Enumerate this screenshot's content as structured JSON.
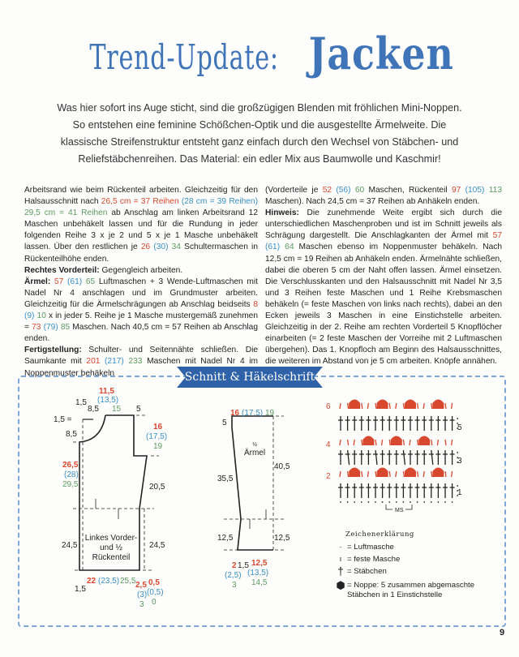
{
  "colors": {
    "accent": "#3f74b8",
    "size_s": "#d8482e",
    "size_m": "#3a8fc8",
    "size_l": "#5d9a62",
    "banner": "#2f62a8"
  },
  "title": {
    "part1": "Trend-Update:",
    "part2": "Jacken"
  },
  "intro": "Was hier sofort ins Auge sticht, sind die großzügigen Blenden mit fröhlichen Mini-Noppen. So entstehen eine feminine Schößchen-Optik und die ausgestellte Ärmelweite. Die klassische Streifenstruktur entsteht ganz einfach durch den Wechsel von Stäbchen- und Reliefstäbchenreihen. Das Material: ein edler Mix aus Baumwolle und Kaschmir!",
  "column1": [
    [
      {
        "t": "Arbeitsrand wie beim Rückenteil arbeiten. Gleichzeitig für den Halsausschnitt nach "
      },
      {
        "t": "26,5 cm = 37 Reihen",
        "c": "r"
      },
      {
        "t": " (28 cm = 39 Reihen) ",
        "c": "b"
      },
      {
        "t": "29,5 cm = 41 Reihen",
        "c": "g"
      },
      {
        "t": " ab Anschlag am linken Arbeitsrand 12 Maschen unbehäkelt lassen und für die Rundung in jeder folgenden Reihe 3 x je 2 und 5 x je 1 Masche unbehäkelt lassen. Über den restlichen je "
      },
      {
        "t": "26",
        "c": "r"
      },
      {
        "t": " (30) ",
        "c": "b"
      },
      {
        "t": "34",
        "c": "g"
      },
      {
        "t": " Schultermaschen in Rückenteilhöhe enden."
      }
    ],
    [
      {
        "t": "Rechtes Vorderteil:",
        "c": "bold"
      },
      {
        "t": " Gegengleich arbeiten."
      }
    ],
    [
      {
        "t": "Ärmel:",
        "c": "bold"
      },
      {
        "t": " "
      },
      {
        "t": "57",
        "c": "r"
      },
      {
        "t": " (61) ",
        "c": "b"
      },
      {
        "t": "65",
        "c": "g"
      },
      {
        "t": " Luftmaschen + 3 Wende-Luftmaschen mit Nadel Nr 4 anschlagen und im Grundmuster arbeiten. Gleichzeitig für die Ärmelschrägungen ab Anschlag beidseits "
      },
      {
        "t": "8",
        "c": "r"
      },
      {
        "t": " (9) ",
        "c": "b"
      },
      {
        "t": "10",
        "c": "g"
      },
      {
        "t": " x in jeder 5. Reihe je 1 Masche mustergemäß zunehmen = "
      },
      {
        "t": "73",
        "c": "r"
      },
      {
        "t": " (79) ",
        "c": "b"
      },
      {
        "t": "85",
        "c": "g"
      },
      {
        "t": " Maschen. Nach 40,5 cm = 57 Reihen ab Anschlag enden."
      }
    ],
    [
      {
        "t": "Fertigstellung:",
        "c": "bold"
      },
      {
        "t": " Schulter- und Seitennähte schließen. Die Saumkante mit "
      },
      {
        "t": "201",
        "c": "r"
      },
      {
        "t": " (217) ",
        "c": "b"
      },
      {
        "t": "233",
        "c": "g"
      },
      {
        "t": " Maschen mit Nadel Nr 4 im Noppenmuster behäkeln"
      }
    ]
  ],
  "column2": [
    [
      {
        "t": "(Vorderteile je "
      },
      {
        "t": "52",
        "c": "r"
      },
      {
        "t": " (56) ",
        "c": "b"
      },
      {
        "t": "60",
        "c": "g"
      },
      {
        "t": " Maschen, Rückenteil "
      },
      {
        "t": "97",
        "c": "r"
      },
      {
        "t": " (105) ",
        "c": "b"
      },
      {
        "t": "113",
        "c": "g"
      },
      {
        "t": " Maschen). Nach 24,5 cm = 37 Reihen ab Anhäkeln enden."
      }
    ],
    [
      {
        "t": "Hinweis:",
        "c": "bold"
      },
      {
        "t": " Die zunehmende Weite ergibt sich durch die unterschiedlichen Maschenproben und ist im Schnitt jeweils als Schrägung dargestellt. Die Anschlagkanten der Ärmel mit "
      },
      {
        "t": "57",
        "c": "r"
      },
      {
        "t": " (61) ",
        "c": "b"
      },
      {
        "t": "64",
        "c": "g"
      },
      {
        "t": " Maschen ebenso im Noppenmuster behäkeln. Nach 12,5 cm = 19 Reihen ab Anhäkeln enden. Ärmelnähte schließen, dabei die oberen 5 cm der Naht offen lassen. Ärmel einsetzen. Die Verschlusskanten und den Halsausschnitt mit Nadel Nr 3,5 und 3 Reihen feste Maschen und 1 Reihe Krebsmaschen behäkeln (= feste Maschen von links nach rechts), dabei an den Ecken jeweils 3 Maschen in eine Einstichstelle arbeiten. Gleichzeitig in der 2. Reihe am rechten Vorderteil 5 Knopflöcher einarbeiten (= 2 feste Maschen der Vorreihe mit 2 Luftmaschen übergehen). Das 1. Knopfloch am Beginn des Halsausschnittes, die weiteren im Abstand von je 5 cm arbeiten. Knöpfe annähen."
      }
    ]
  ],
  "section_title": "Schnitt & Häkelschrift",
  "body_diagram": {
    "top_r": "11,5",
    "top_b": "(13,5)",
    "top_g": "15",
    "top_left": "1,5",
    "top_neck": "8,5",
    "top_right": "5",
    "left_top": "1,5 =",
    "left_neck": "8,5",
    "right_r": "16",
    "right_b": "(17,5)",
    "right_g": "19",
    "left_r": "26,5",
    "left_b": "(28)",
    "left_g": "29,5",
    "right_mid": "20,5",
    "left_low": "24,5",
    "right_low": "24,5",
    "label1": "Linkes Vorder-",
    "label2": "und ½",
    "label3": "Rückenteil",
    "bottom_r": "22",
    "bottom_b": "(23,5)",
    "bottom_g": "25,5",
    "bottom_left": "1,5",
    "br1_r": "2,5",
    "br1_b": "(3)",
    "br1_g": "3",
    "br2_r": "0,5",
    "br2_b": "(0,5)",
    "br2_g": "0"
  },
  "sleeve_diagram": {
    "top_r": "16",
    "top_b": "(17,5)",
    "top_g": "19",
    "top_left": "5",
    "label1": "½",
    "label2": "Ärmel",
    "left_mid": "35,5",
    "right_mid": "40,5",
    "left_low": "12,5",
    "right_low": "12,5",
    "b1_r": "2",
    "b1_b": "(2,5)",
    "b1_g": "3",
    "b2": "1,5",
    "b3_r": "12,5",
    "b3_b": "(13,5)",
    "b3_g": "14,5"
  },
  "crochet_chart": {
    "row_labels_left": [
      "6",
      "4",
      "2"
    ],
    "row_labels_right": [
      "5",
      "3",
      "1"
    ],
    "repeat_label": "MS"
  },
  "legend": {
    "heading": "Zeichenerklärung",
    "items": [
      {
        "icon": "chain-stitch-dot",
        "label": "= Luftmasche"
      },
      {
        "icon": "single-crochet-bar",
        "label": "= feste Masche"
      },
      {
        "icon": "double-crochet-cross",
        "label": "= Stäbchen"
      },
      {
        "icon": "bobble",
        "label": "= Noppe: 5 zusammen abgemaschte Stäbchen in 1 Einstichstelle"
      }
    ]
  },
  "page_number": "9"
}
